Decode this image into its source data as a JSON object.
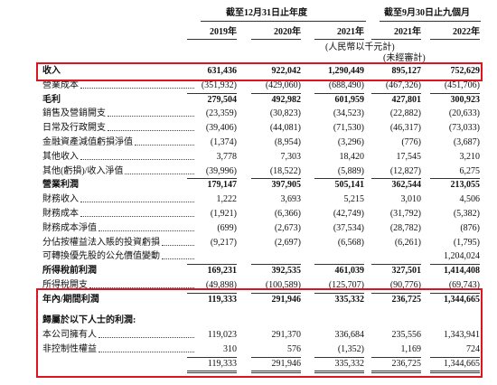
{
  "header": {
    "group1": "截至12月31日止年度",
    "group2": "截至9月30日止九個月",
    "years": [
      "2019年",
      "2020年",
      "2021年",
      "2021年",
      "2022年"
    ],
    "unit": "(人民幣以千元計)",
    "unaudited": "(未經審計)"
  },
  "table": {
    "rows": [
      {
        "label": "收入",
        "values": [
          "631,436",
          "922,042",
          "1,290,449",
          "895,127",
          "752,629"
        ]
      },
      {
        "label": "營業成本",
        "values": [
          "(351,932)",
          "(429,060)",
          "(688,490)",
          "(467,326)",
          "(451,706)"
        ]
      },
      {
        "label": "毛利",
        "values": [
          "279,504",
          "492,982",
          "601,959",
          "427,801",
          "300,923"
        ]
      },
      {
        "label": "銷售及營銷開支",
        "values": [
          "(23,359)",
          "(30,823)",
          "(34,523)",
          "(22,882)",
          "(20,633)"
        ]
      },
      {
        "label": "日常及行政開支",
        "values": [
          "(39,406)",
          "(44,081)",
          "(71,530)",
          "(46,317)",
          "(73,033)"
        ]
      },
      {
        "label": "金融資產減值虧損淨值",
        "values": [
          "(1,374)",
          "(8,954)",
          "(3,296)",
          "(776)",
          "(3,687)"
        ]
      },
      {
        "label": "其他收入",
        "values": [
          "3,778",
          "7,303",
          "18,420",
          "17,545",
          "3,210"
        ]
      },
      {
        "label": "其他(虧損)/收入淨值",
        "values": [
          "(39,996)",
          "(18,522)",
          "(5,889)",
          "(12,827)",
          "6,275"
        ]
      },
      {
        "label": "營業利潤",
        "values": [
          "179,147",
          "397,905",
          "505,141",
          "362,544",
          "213,055"
        ]
      },
      {
        "label": "財務收入",
        "values": [
          "1,222",
          "3,693",
          "5,215",
          "3,010",
          "4,506"
        ]
      },
      {
        "label": "財務成本",
        "values": [
          "(1,921)",
          "(6,366)",
          "(42,749)",
          "(31,792)",
          "(5,382)"
        ]
      },
      {
        "label": "財務成本淨值",
        "values": [
          "(699)",
          "(2,673)",
          "(37,534)",
          "(28,782)",
          "(876)"
        ]
      },
      {
        "label": "分佔按權益法入賬的投資虧損",
        "values": [
          "(9,217)",
          "(2,697)",
          "(6,568)",
          "(6,261)",
          "(1,795)"
        ]
      },
      {
        "label": "可轉換優先股的公允價值變動",
        "values": [
          null,
          null,
          null,
          null,
          "1,204,024"
        ]
      },
      {
        "label": "所得稅前利潤",
        "values": [
          "169,231",
          "392,535",
          "461,039",
          "327,501",
          "1,414,408"
        ]
      },
      {
        "label": "所得稅開支",
        "values": [
          "(49,898)",
          "(100,589)",
          "(125,707)",
          "(90,776)",
          "(69,743)"
        ]
      },
      {
        "label": "年內/期間利潤",
        "values": [
          "119,333",
          "291,946",
          "335,332",
          "236,725",
          "1,344,665"
        ]
      },
      {
        "label": "歸屬於以下人士的利潤:"
      },
      {
        "label": "本公司擁有人",
        "values": [
          "119,023",
          "291,370",
          "336,684",
          "235,556",
          "1,343,941"
        ]
      },
      {
        "label": "非控制性權益",
        "values": [
          "310",
          "576",
          "(1,352)",
          "1,169",
          "724"
        ]
      },
      {
        "values": [
          "119,333",
          "291,946",
          "335,332",
          "236,725",
          "1,344,665"
        ]
      }
    ]
  }
}
